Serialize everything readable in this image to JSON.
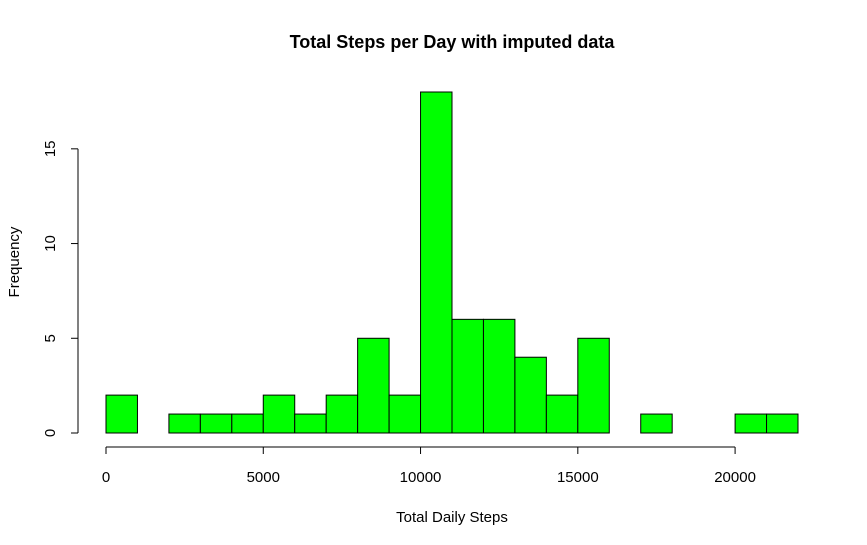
{
  "chart_data": {
    "type": "bar",
    "title": "Total Steps per Day with imputed data",
    "xlabel": "Total Daily Steps",
    "ylabel": "Frequency",
    "bar_color": "#00ff00",
    "bin_width": 1000,
    "xlim": [
      0,
      22000
    ],
    "ylim": [
      0,
      18
    ],
    "x_ticks": [
      0,
      5000,
      10000,
      15000,
      20000
    ],
    "y_ticks": [
      0,
      5,
      10,
      15
    ],
    "bins": [
      {
        "start": 0,
        "end": 1000,
        "count": 2
      },
      {
        "start": 1000,
        "end": 2000,
        "count": 0
      },
      {
        "start": 2000,
        "end": 3000,
        "count": 1
      },
      {
        "start": 3000,
        "end": 4000,
        "count": 1
      },
      {
        "start": 4000,
        "end": 5000,
        "count": 1
      },
      {
        "start": 5000,
        "end": 6000,
        "count": 2
      },
      {
        "start": 6000,
        "end": 7000,
        "count": 1
      },
      {
        "start": 7000,
        "end": 8000,
        "count": 2
      },
      {
        "start": 8000,
        "end": 9000,
        "count": 5
      },
      {
        "start": 9000,
        "end": 10000,
        "count": 2
      },
      {
        "start": 10000,
        "end": 11000,
        "count": 18
      },
      {
        "start": 11000,
        "end": 12000,
        "count": 6
      },
      {
        "start": 12000,
        "end": 13000,
        "count": 6
      },
      {
        "start": 13000,
        "end": 14000,
        "count": 4
      },
      {
        "start": 14000,
        "end": 15000,
        "count": 2
      },
      {
        "start": 15000,
        "end": 16000,
        "count": 5
      },
      {
        "start": 16000,
        "end": 17000,
        "count": 0
      },
      {
        "start": 17000,
        "end": 18000,
        "count": 1
      },
      {
        "start": 18000,
        "end": 19000,
        "count": 0
      },
      {
        "start": 19000,
        "end": 20000,
        "count": 0
      },
      {
        "start": 20000,
        "end": 21000,
        "count": 1
      },
      {
        "start": 21000,
        "end": 22000,
        "count": 1
      }
    ]
  }
}
